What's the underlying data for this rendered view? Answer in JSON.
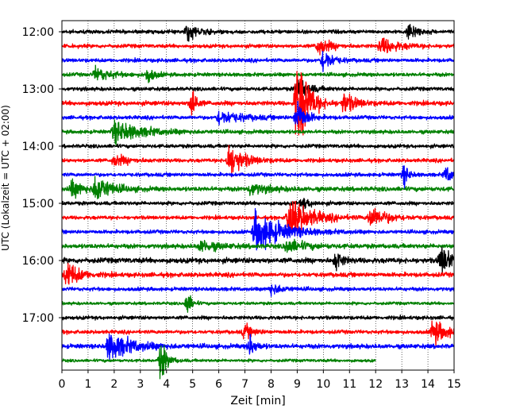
{
  "chart_data": {
    "type": "line",
    "title": "",
    "xlabel": "Zeit  [min]",
    "ylabel": "UTC (Lokalzeit = UTC + 02:00)",
    "xlim": [
      0,
      15
    ],
    "x_ticks": [
      "0",
      "1",
      "2",
      "3",
      "4",
      "5",
      "6",
      "7",
      "8",
      "9",
      "10",
      "11",
      "12",
      "13",
      "14",
      "15"
    ],
    "y_ticks": [
      "12:00",
      "13:00",
      "14:00",
      "15:00",
      "16:00",
      "17:00"
    ],
    "grid": "vertical dotted",
    "colors": [
      "#000000",
      "#ff0000",
      "#0000ff",
      "#008000"
    ],
    "series": [
      {
        "start": "12:00",
        "color": "#000000",
        "noise": 0.5,
        "x_end": 15,
        "events": [
          [
            4.8,
            1.2,
            0.4
          ],
          [
            13.3,
            1.5,
            0.25
          ]
        ]
      },
      {
        "start": "12:15",
        "color": "#ff0000",
        "noise": 0.5,
        "x_end": 15,
        "events": [
          [
            9.8,
            1.3,
            0.4
          ],
          [
            12.2,
            1.2,
            0.6
          ]
        ]
      },
      {
        "start": "12:30",
        "color": "#0000ff",
        "noise": 0.5,
        "x_end": 15,
        "events": [
          [
            10.0,
            1.8,
            0.3
          ]
        ]
      },
      {
        "start": "12:45",
        "color": "#008000",
        "noise": 0.5,
        "x_end": 15,
        "events": [
          [
            1.3,
            1.0,
            0.5
          ],
          [
            3.3,
            1.2,
            0.2
          ]
        ]
      },
      {
        "start": "13:00",
        "color": "#000000",
        "noise": 0.5,
        "x_end": 15,
        "events": [
          [
            9.0,
            1.5,
            0.4
          ]
        ]
      },
      {
        "start": "13:15",
        "color": "#ff0000",
        "noise": 0.6,
        "x_end": 15,
        "events": [
          [
            9.0,
            9.0,
            0.35
          ],
          [
            5.0,
            3.0,
            0.12
          ],
          [
            10.8,
            1.5,
            0.4
          ]
        ]
      },
      {
        "start": "13:30",
        "color": "#0000ff",
        "noise": 0.5,
        "x_end": 15,
        "events": [
          [
            9.0,
            2.5,
            0.3
          ],
          [
            6.0,
            1.0,
            0.8
          ]
        ]
      },
      {
        "start": "13:45",
        "color": "#008000",
        "noise": 0.5,
        "x_end": 15,
        "events": [
          [
            2.0,
            1.5,
            1.0
          ]
        ]
      },
      {
        "start": "14:00",
        "color": "#000000",
        "noise": 0.5,
        "x_end": 15,
        "events": []
      },
      {
        "start": "14:15",
        "color": "#ff0000",
        "noise": 0.5,
        "x_end": 15,
        "events": [
          [
            6.4,
            2.5,
            0.5
          ],
          [
            2.0,
            0.8,
            0.5
          ]
        ]
      },
      {
        "start": "14:30",
        "color": "#0000ff",
        "noise": 0.5,
        "x_end": 15,
        "events": [
          [
            13.1,
            1.5,
            0.15
          ],
          [
            14.7,
            1.0,
            0.4
          ]
        ]
      },
      {
        "start": "14:45",
        "color": "#008000",
        "noise": 0.6,
        "x_end": 15,
        "events": [
          [
            1.3,
            2.0,
            0.5
          ],
          [
            0.4,
            1.2,
            0.4
          ],
          [
            7.2,
            0.8,
            0.6
          ]
        ]
      },
      {
        "start": "15:00",
        "color": "#000000",
        "noise": 0.5,
        "x_end": 15,
        "events": [
          [
            9.2,
            0.8,
            0.3
          ]
        ]
      },
      {
        "start": "15:15",
        "color": "#ff0000",
        "noise": 0.5,
        "x_end": 15,
        "events": [
          [
            8.7,
            3.2,
            0.7
          ],
          [
            11.8,
            1.5,
            0.6
          ]
        ]
      },
      {
        "start": "15:30",
        "color": "#0000ff",
        "noise": 0.5,
        "x_end": 15,
        "events": [
          [
            7.4,
            3.0,
            0.9
          ]
        ]
      },
      {
        "start": "15:45",
        "color": "#008000",
        "noise": 0.6,
        "x_end": 15,
        "events": [
          [
            8.6,
            1.0,
            0.6
          ],
          [
            5.3,
            0.8,
            0.6
          ]
        ]
      },
      {
        "start": "16:00",
        "color": "#000000",
        "noise": 0.7,
        "x_end": 15,
        "events": [
          [
            10.5,
            1.5,
            0.2
          ],
          [
            14.5,
            2.0,
            0.5
          ]
        ]
      },
      {
        "start": "16:15",
        "color": "#ff0000",
        "noise": 0.6,
        "x_end": 15,
        "events": [
          [
            0.2,
            2.0,
            0.4
          ]
        ]
      },
      {
        "start": "16:30",
        "color": "#0000ff",
        "noise": 0.5,
        "x_end": 15,
        "events": [
          [
            8.0,
            0.8,
            0.4
          ]
        ]
      },
      {
        "start": "16:45",
        "color": "#008000",
        "noise": 0.4,
        "x_end": 15,
        "events": [
          [
            4.8,
            1.8,
            0.15
          ]
        ]
      },
      {
        "start": "17:00",
        "color": "#000000",
        "noise": 0.5,
        "x_end": 15,
        "events": []
      },
      {
        "start": "17:15",
        "color": "#ff0000",
        "noise": 0.5,
        "x_end": 15,
        "events": [
          [
            7.0,
            1.0,
            0.3
          ],
          [
            14.2,
            1.8,
            0.5
          ]
        ]
      },
      {
        "start": "17:30",
        "color": "#0000ff",
        "noise": 0.6,
        "x_end": 15,
        "events": [
          [
            1.8,
            2.0,
            0.8
          ],
          [
            7.2,
            1.5,
            0.2
          ]
        ]
      },
      {
        "start": "17:45",
        "color": "#008000",
        "noise": 0.4,
        "x_end": 12,
        "events": [
          [
            3.8,
            3.0,
            0.2
          ]
        ]
      }
    ]
  }
}
